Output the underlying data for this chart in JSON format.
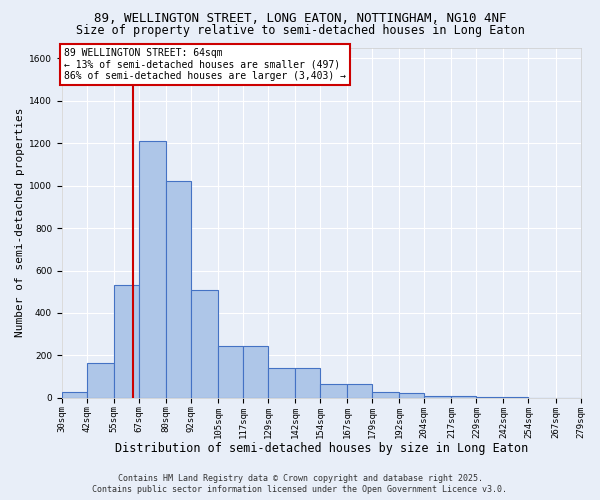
{
  "title_line1": "89, WELLINGTON STREET, LONG EATON, NOTTINGHAM, NG10 4NF",
  "title_line2": "Size of property relative to semi-detached houses in Long Eaton",
  "xlabel": "Distribution of semi-detached houses by size in Long Eaton",
  "ylabel": "Number of semi-detached properties",
  "bin_edges": [
    30,
    42,
    55,
    67,
    80,
    92,
    105,
    117,
    129,
    142,
    154,
    167,
    179,
    192,
    204,
    217,
    229,
    242,
    254,
    267,
    279
  ],
  "bar_heights": [
    30,
    165,
    530,
    1210,
    1020,
    510,
    245,
    245,
    140,
    140,
    65,
    65,
    30,
    25,
    10,
    10,
    5,
    5,
    2,
    2
  ],
  "bar_color": "#aec6e8",
  "bar_edge_color": "#4472c4",
  "property_size": 64,
  "red_line_color": "#cc0000",
  "annotation_text": "89 WELLINGTON STREET: 64sqm\n← 13% of semi-detached houses are smaller (497)\n86% of semi-detached houses are larger (3,403) →",
  "annotation_box_color": "#ffffff",
  "annotation_box_edge_color": "#cc0000",
  "annotation_fontsize": 7,
  "ylim": [
    0,
    1650
  ],
  "yticks": [
    0,
    200,
    400,
    600,
    800,
    1000,
    1200,
    1400,
    1600
  ],
  "background_color": "#e8eef8",
  "grid_color": "#ffffff",
  "footer_line1": "Contains HM Land Registry data © Crown copyright and database right 2025.",
  "footer_line2": "Contains public sector information licensed under the Open Government Licence v3.0.",
  "title_fontsize": 9,
  "xlabel_fontsize": 8.5,
  "ylabel_fontsize": 8,
  "tick_fontsize": 6.5,
  "footer_fontsize": 6
}
